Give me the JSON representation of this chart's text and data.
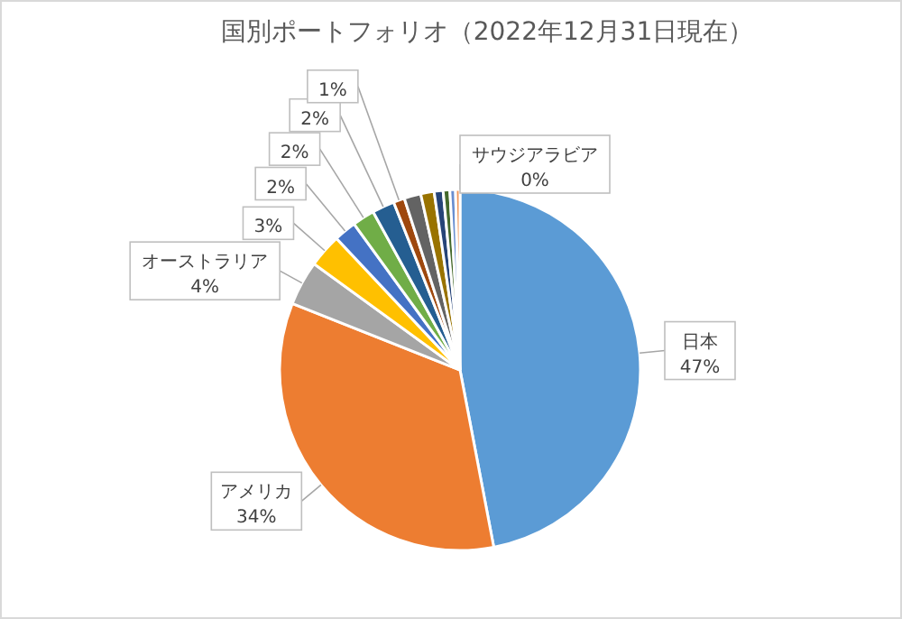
{
  "chart_data": {
    "type": "pie",
    "title": "国別ポートフォリオ（2022年12月31日現在）",
    "categories": [
      "日本",
      "アメリカ",
      "オーストラリア",
      null,
      null,
      null,
      null,
      null,
      null,
      null,
      null,
      null,
      null,
      null,
      "サウジアラビア"
    ],
    "values": [
      47,
      34,
      4,
      3,
      2,
      2,
      2,
      1,
      1.5,
      1.2,
      0.8,
      0.6,
      0.5,
      0.4,
      0
    ],
    "value_labels": [
      "47%",
      "34%",
      "4%",
      "3%",
      "2%",
      "2%",
      "2%",
      "1%",
      null,
      null,
      null,
      null,
      null,
      null,
      "0%"
    ],
    "colors": [
      "#5b9bd5",
      "#ed7d31",
      "#a5a5a5",
      "#ffc000",
      "#4472c4",
      "#70ad47",
      "#255e91",
      "#9e480e",
      "#636363",
      "#997300",
      "#264478",
      "#43682b",
      "#698ed0",
      "#f1975a",
      "#b7b7b7"
    ]
  }
}
